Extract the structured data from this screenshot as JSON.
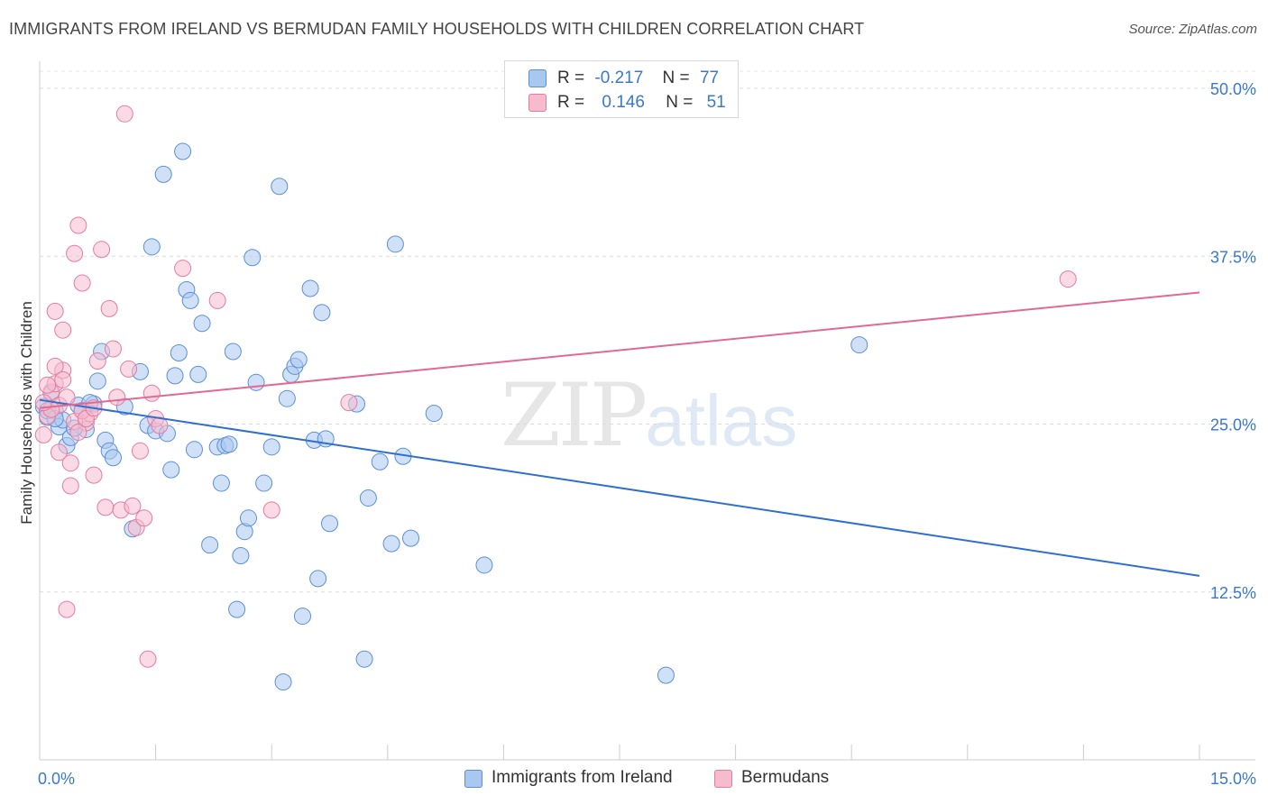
{
  "title": "IMMIGRANTS FROM IRELAND VS BERMUDAN FAMILY HOUSEHOLDS WITH CHILDREN CORRELATION CHART",
  "source": "Source: ZipAtlas.com",
  "watermark": {
    "zip": "ZIP",
    "atlas": "atlas"
  },
  "legend": {
    "rows": [
      {
        "r_label": "R =",
        "r_value": "-0.217",
        "n_label": "N =",
        "n_value": "77",
        "color": "#a9c8f0"
      },
      {
        "r_label": "R =",
        "r_value": "0.146",
        "n_label": "N =",
        "n_value": "51",
        "color": "#f6bccd"
      }
    ]
  },
  "chart_data": {
    "type": "scatter",
    "title": "IMMIGRANTS FROM IRELAND VS BERMUDAN FAMILY HOUSEHOLDS WITH CHILDREN CORRELATION CHART",
    "xlabel": "",
    "ylabel": "Family Households with Children",
    "xlim": [
      0,
      15
    ],
    "ylim": [
      0,
      50
    ],
    "x_tick_labels": [
      "0.0%",
      "15.0%"
    ],
    "y_ticks": [
      12.5,
      25.0,
      37.5,
      50.0
    ],
    "y_tick_labels": [
      "12.5%",
      "25.0%",
      "37.5%",
      "50.0%"
    ],
    "grid": true,
    "legend_position": "bottom",
    "series": [
      {
        "name": "Immigrants from Ireland",
        "color": "#a9c8f0",
        "stroke": "#5b8fd6",
        "line_color": "#2f6fd0",
        "trend": {
          "x": [
            0,
            15
          ],
          "y": [
            26.8,
            13.7
          ]
        },
        "points": [
          [
            0.05,
            26.3
          ],
          [
            0.1,
            25.5
          ],
          [
            0.15,
            27.3
          ],
          [
            0.2,
            26.0
          ],
          [
            0.25,
            24.8
          ],
          [
            0.3,
            25.3
          ],
          [
            0.35,
            23.4
          ],
          [
            0.4,
            24.0
          ],
          [
            0.5,
            26.4
          ],
          [
            0.55,
            26.0
          ],
          [
            0.6,
            24.6
          ],
          [
            0.7,
            26.5
          ],
          [
            0.75,
            28.2
          ],
          [
            0.8,
            30.4
          ],
          [
            0.85,
            23.8
          ],
          [
            0.9,
            23.0
          ],
          [
            0.95,
            22.5
          ],
          [
            1.1,
            26.3
          ],
          [
            1.2,
            17.2
          ],
          [
            1.3,
            28.9
          ],
          [
            1.4,
            24.9
          ],
          [
            1.45,
            38.2
          ],
          [
            1.5,
            24.5
          ],
          [
            1.6,
            43.6
          ],
          [
            1.65,
            24.3
          ],
          [
            1.7,
            21.6
          ],
          [
            1.75,
            28.6
          ],
          [
            1.8,
            30.3
          ],
          [
            1.85,
            45.3
          ],
          [
            1.9,
            35.0
          ],
          [
            1.95,
            34.2
          ],
          [
            2.0,
            23.1
          ],
          [
            2.05,
            28.7
          ],
          [
            2.1,
            32.5
          ],
          [
            2.2,
            16.0
          ],
          [
            2.3,
            23.3
          ],
          [
            2.35,
            20.6
          ],
          [
            2.4,
            23.4
          ],
          [
            2.45,
            23.5
          ],
          [
            2.5,
            30.4
          ],
          [
            2.55,
            11.2
          ],
          [
            2.6,
            15.2
          ],
          [
            2.65,
            17.0
          ],
          [
            2.7,
            18.0
          ],
          [
            2.75,
            37.4
          ],
          [
            2.8,
            28.1
          ],
          [
            2.9,
            20.6
          ],
          [
            3.0,
            23.3
          ],
          [
            3.1,
            42.7
          ],
          [
            3.15,
            5.8
          ],
          [
            3.2,
            26.9
          ],
          [
            3.25,
            28.7
          ],
          [
            3.3,
            29.3
          ],
          [
            3.35,
            29.8
          ],
          [
            3.4,
            10.7
          ],
          [
            3.5,
            35.1
          ],
          [
            3.55,
            23.8
          ],
          [
            3.6,
            13.5
          ],
          [
            3.65,
            33.3
          ],
          [
            3.7,
            23.9
          ],
          [
            3.75,
            17.6
          ],
          [
            4.1,
            26.5
          ],
          [
            4.2,
            7.5
          ],
          [
            4.25,
            19.5
          ],
          [
            4.4,
            22.2
          ],
          [
            4.55,
            16.1
          ],
          [
            4.6,
            38.4
          ],
          [
            4.7,
            22.6
          ],
          [
            4.8,
            16.5
          ],
          [
            5.1,
            25.8
          ],
          [
            5.75,
            14.5
          ],
          [
            8.1,
            6.3
          ],
          [
            10.6,
            30.9
          ],
          [
            0.1,
            26.0
          ],
          [
            0.2,
            25.4
          ],
          [
            0.45,
            24.7
          ],
          [
            0.65,
            26.6
          ]
        ]
      },
      {
        "name": "Bermudans",
        "color": "#f6bccd",
        "stroke": "#e67b9e",
        "line_color": "#e06a92",
        "trend": {
          "x": [
            0,
            15
          ],
          "y": [
            26.2,
            34.8
          ]
        },
        "points": [
          [
            0.05,
            24.2
          ],
          [
            0.1,
            25.6
          ],
          [
            0.15,
            27.4
          ],
          [
            0.2,
            28.0
          ],
          [
            0.2,
            33.4
          ],
          [
            0.25,
            26.4
          ],
          [
            0.3,
            32.0
          ],
          [
            0.35,
            27.0
          ],
          [
            0.4,
            22.1
          ],
          [
            0.45,
            37.7
          ],
          [
            0.5,
            39.8
          ],
          [
            0.55,
            35.5
          ],
          [
            0.6,
            25.1
          ],
          [
            0.65,
            25.8
          ],
          [
            0.7,
            21.2
          ],
          [
            0.75,
            29.7
          ],
          [
            0.8,
            38.0
          ],
          [
            0.85,
            18.8
          ],
          [
            0.9,
            33.6
          ],
          [
            0.95,
            30.6
          ],
          [
            1.0,
            27.0
          ],
          [
            1.05,
            18.6
          ],
          [
            1.1,
            48.1
          ],
          [
            1.15,
            29.1
          ],
          [
            1.2,
            18.9
          ],
          [
            1.25,
            17.3
          ],
          [
            1.3,
            23.0
          ],
          [
            1.35,
            18.0
          ],
          [
            1.4,
            7.5
          ],
          [
            1.45,
            27.3
          ],
          [
            1.5,
            25.4
          ],
          [
            1.55,
            24.9
          ],
          [
            1.85,
            36.6
          ],
          [
            2.3,
            34.2
          ],
          [
            3.0,
            18.6
          ],
          [
            4.0,
            26.6
          ],
          [
            13.3,
            35.8
          ],
          [
            0.1,
            27.9
          ],
          [
            0.15,
            26.1
          ],
          [
            0.25,
            22.9
          ],
          [
            0.3,
            29.0
          ],
          [
            0.35,
            11.2
          ],
          [
            0.4,
            20.4
          ],
          [
            0.45,
            25.2
          ],
          [
            0.5,
            24.4
          ],
          [
            0.55,
            26.0
          ],
          [
            0.6,
            25.4
          ],
          [
            0.7,
            26.2
          ],
          [
            0.2,
            29.3
          ],
          [
            0.3,
            28.3
          ],
          [
            0.05,
            26.6
          ]
        ]
      }
    ]
  }
}
